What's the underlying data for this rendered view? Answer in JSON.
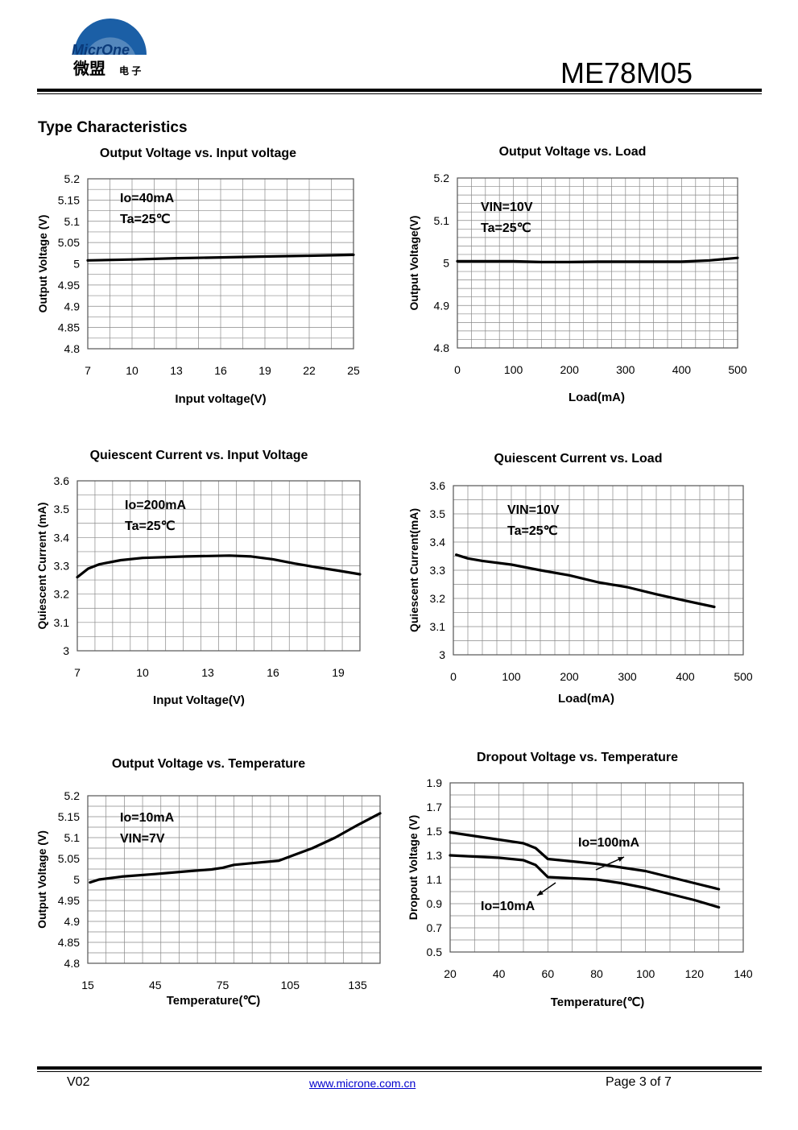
{
  "header": {
    "logo_text": "MicrOne",
    "logo_cn": "微盟",
    "logo_cn_small": "电 子",
    "part_number": "ME78M05"
  },
  "section_title": "Type Characteristics",
  "footer": {
    "version": "V02",
    "url": "www.microne.com.cn",
    "page": "Page 3 of 7"
  },
  "colors": {
    "curve": "#000000",
    "grid": "#888888",
    "link": "#0000cc"
  },
  "chart_data": [
    {
      "type": "line",
      "title": "Output Voltage vs. Input voltage",
      "xlabel": "Input voltage(V)",
      "ylabel": "Output Voltage (V)",
      "xlim": [
        7,
        25
      ],
      "ylim": [
        4.8,
        5.2
      ],
      "xticks": [
        "7",
        "10",
        "13",
        "16",
        "19",
        "22",
        "25"
      ],
      "yticks": [
        "4.8",
        "4.85",
        "4.9",
        "4.95",
        "5",
        "5.05",
        "5.1",
        "5.15",
        "5.2"
      ],
      "annotations": [
        "Io=40mA",
        "Ta=25℃"
      ],
      "series": [
        {
          "x": [
            7,
            10,
            13,
            16,
            19,
            22,
            25
          ],
          "y": [
            5.008,
            5.01,
            5.013,
            5.015,
            5.017,
            5.019,
            5.021
          ]
        }
      ]
    },
    {
      "type": "line",
      "title": "Output Voltage vs. Load",
      "xlabel": "Load(mA)",
      "ylabel": "Output Voltage(V)",
      "xlim": [
        0,
        500
      ],
      "ylim": [
        4.8,
        5.2
      ],
      "xticks": [
        "0",
        "100",
        "200",
        "300",
        "400",
        "500"
      ],
      "yticks": [
        "4.8",
        "4.9",
        "5",
        "5.1",
        "5.2"
      ],
      "annotations": [
        "VIN=10V",
        "Ta=25℃"
      ],
      "series": [
        {
          "x": [
            0,
            100,
            150,
            200,
            250,
            300,
            400,
            450,
            500
          ],
          "y": [
            5.004,
            5.004,
            5.002,
            5.002,
            5.003,
            5.003,
            5.003,
            5.006,
            5.012
          ]
        }
      ]
    },
    {
      "type": "line",
      "title": "Quiescent Current vs. Input Voltage",
      "xlabel": "Input Voltage(V)",
      "ylabel": "Quiescent Current (mA)",
      "xlim": [
        7,
        20
      ],
      "ylim": [
        3.0,
        3.6
      ],
      "xticks": [
        "7",
        "10",
        "13",
        "16",
        "19"
      ],
      "yticks": [
        "3",
        "3.1",
        "3.2",
        "3.3",
        "3.4",
        "3.5",
        "3.6"
      ],
      "annotations": [
        "Io=200mA",
        "Ta=25℃"
      ],
      "series": [
        {
          "x": [
            7,
            7.5,
            8,
            9,
            10,
            12,
            14,
            15,
            16,
            17,
            18,
            19,
            20
          ],
          "y": [
            3.26,
            3.29,
            3.305,
            3.32,
            3.328,
            3.333,
            3.336,
            3.333,
            3.323,
            3.308,
            3.295,
            3.283,
            3.27
          ]
        }
      ]
    },
    {
      "type": "line",
      "title": "Quiescent Current vs. Load",
      "xlabel": "Load(mA)",
      "ylabel": "Quiescent Current(mA)",
      "xlim": [
        0,
        500
      ],
      "ylim": [
        3.0,
        3.6
      ],
      "xticks": [
        "0",
        "100",
        "200",
        "300",
        "400",
        "500"
      ],
      "yticks": [
        "3",
        "3.1",
        "3.2",
        "3.3",
        "3.4",
        "3.5",
        "3.6"
      ],
      "annotations": [
        "VIN=10V",
        "Ta=25℃"
      ],
      "series": [
        {
          "x": [
            5,
            25,
            50,
            100,
            150,
            200,
            250,
            300,
            350,
            400,
            450
          ],
          "y": [
            3.355,
            3.342,
            3.333,
            3.32,
            3.3,
            3.282,
            3.257,
            3.24,
            3.215,
            3.192,
            3.17
          ]
        }
      ]
    },
    {
      "type": "line",
      "title": "Output Voltage vs. Temperature",
      "xlabel": "Temperature(℃)",
      "ylabel": "Output Voltage (V)",
      "xlim": [
        15,
        145
      ],
      "ylim": [
        4.8,
        5.2
      ],
      "xticks": [
        "15",
        "45",
        "75",
        "105",
        "135"
      ],
      "yticks": [
        "4.8",
        "4.85",
        "4.9",
        "4.95",
        "5",
        "5.05",
        "5.1",
        "5.15",
        "5.2"
      ],
      "annotations": [
        "Io=10mA",
        "VIN=7V"
      ],
      "series": [
        {
          "x": [
            16,
            20,
            30,
            45,
            60,
            70,
            75,
            80,
            90,
            100,
            105,
            115,
            125,
            135,
            145
          ],
          "y": [
            4.993,
            5.0,
            5.007,
            5.013,
            5.02,
            5.024,
            5.028,
            5.035,
            5.04,
            5.045,
            5.055,
            5.075,
            5.1,
            5.13,
            5.158
          ]
        }
      ]
    },
    {
      "type": "line",
      "title": "Dropout Voltage vs. Temperature",
      "xlabel": "Temperature(℃)",
      "ylabel": "Dropout Voltage (V)",
      "xlim": [
        20,
        140
      ],
      "ylim": [
        0.5,
        1.9
      ],
      "xticks": [
        "20",
        "40",
        "60",
        "80",
        "100",
        "120",
        "140"
      ],
      "yticks": [
        "0.5",
        "0.7",
        "0.9",
        "1.1",
        "1.3",
        "1.5",
        "1.7",
        "1.9"
      ],
      "annotations": [
        "Io=100mA",
        "Io=10mA"
      ],
      "series": [
        {
          "name": "Io=100mA",
          "x": [
            20,
            30,
            40,
            50,
            55,
            60,
            70,
            80,
            90,
            100,
            110,
            120,
            130
          ],
          "y": [
            1.49,
            1.46,
            1.43,
            1.4,
            1.36,
            1.27,
            1.25,
            1.23,
            1.2,
            1.17,
            1.12,
            1.07,
            1.02
          ]
        },
        {
          "name": "Io=10mA",
          "x": [
            20,
            30,
            40,
            50,
            55,
            60,
            70,
            80,
            90,
            100,
            110,
            120,
            130
          ],
          "y": [
            1.3,
            1.29,
            1.28,
            1.26,
            1.22,
            1.12,
            1.11,
            1.1,
            1.07,
            1.03,
            0.98,
            0.93,
            0.87
          ]
        }
      ]
    }
  ]
}
